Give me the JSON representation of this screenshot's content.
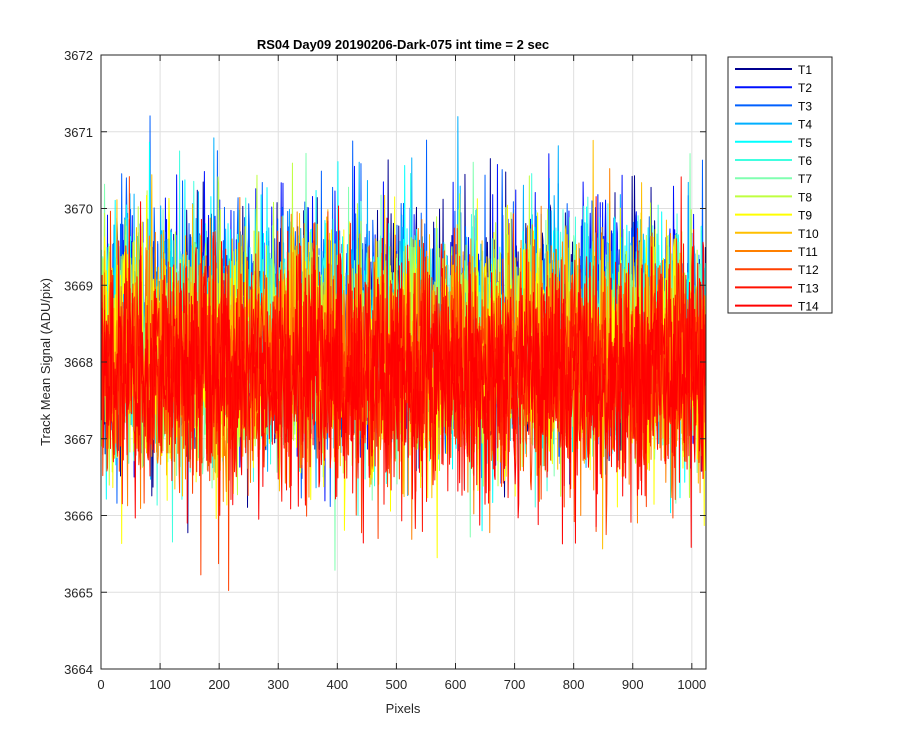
{
  "chart_data": {
    "type": "line",
    "title": "RS04 Day09 20190206-Dark-075 int time = 2 sec",
    "xlabel": "Pixels",
    "ylabel": "Track Mean Signal (ADU/pix)",
    "xlim": [
      0,
      1024
    ],
    "ylim": [
      3664,
      3672
    ],
    "x_ticks": [
      0,
      100,
      200,
      300,
      400,
      500,
      600,
      700,
      800,
      900,
      1000
    ],
    "y_ticks": [
      3664,
      3665,
      3666,
      3667,
      3668,
      3669,
      3670,
      3671,
      3672
    ],
    "grid": true,
    "legend_position": "outside-top-right",
    "x_range_points": [
      1,
      1024
    ],
    "series": [
      {
        "name": "T1",
        "color": "#00008f",
        "mean": 3668.4,
        "min": 3665.3,
        "max": 3671.0
      },
      {
        "name": "T2",
        "color": "#0010ff",
        "mean": 3668.5,
        "min": 3664.3,
        "max": 3671.4
      },
      {
        "name": "T3",
        "color": "#0060ff",
        "mean": 3668.5,
        "min": 3665.0,
        "max": 3671.4
      },
      {
        "name": "T4",
        "color": "#00afff",
        "mean": 3668.4,
        "min": 3665.3,
        "max": 3671.2
      },
      {
        "name": "T5",
        "color": "#00ffff",
        "mean": 3668.3,
        "min": 3665.4,
        "max": 3671.0
      },
      {
        "name": "T6",
        "color": "#40ffe0",
        "mean": 3668.3,
        "min": 3664.4,
        "max": 3670.9
      },
      {
        "name": "T7",
        "color": "#80ffb0",
        "mean": 3668.2,
        "min": 3664.6,
        "max": 3670.8
      },
      {
        "name": "T8",
        "color": "#bfff40",
        "mean": 3668.2,
        "min": 3665.3,
        "max": 3670.8
      },
      {
        "name": "T9",
        "color": "#ffff00",
        "mean": 3668.1,
        "min": 3665.2,
        "max": 3671.3
      },
      {
        "name": "T10",
        "color": "#ffbf00",
        "mean": 3668.1,
        "min": 3664.9,
        "max": 3671.0
      },
      {
        "name": "T11",
        "color": "#ff8000",
        "mean": 3668.0,
        "min": 3664.8,
        "max": 3671.6
      },
      {
        "name": "T12",
        "color": "#ff4000",
        "mean": 3667.9,
        "min": 3664.1,
        "max": 3671.0
      },
      {
        "name": "T13",
        "color": "#ff1000",
        "mean": 3667.9,
        "min": 3664.5,
        "max": 3671.1
      },
      {
        "name": "T14",
        "color": "#ff0000",
        "mean": 3667.8,
        "min": 3665.1,
        "max": 3671.4
      }
    ]
  }
}
